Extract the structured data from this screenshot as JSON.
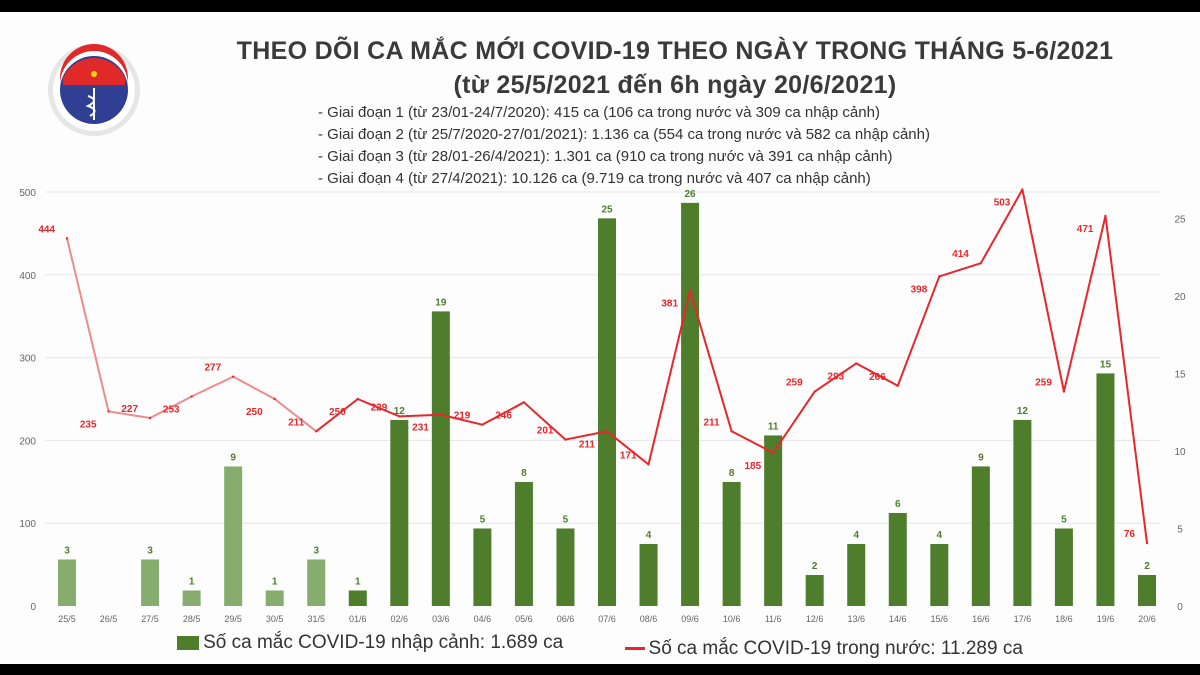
{
  "header": {
    "title_line1": "THEO DÕI CA MẮC MỚI COVID-19 THEO NGÀY TRONG THÁNG 5-6/2021",
    "title_line2": "(từ 25/5/2021 đến 6h ngày 20/6/2021)",
    "logo_text": "BỘ Y TẾ",
    "phases": [
      "- Giai đoạn 1 (từ 23/01-24/7/2020): 415 ca (106 ca trong nước và 309 ca nhập cảnh)",
      "- Giai đoạn 2 (từ 25/7/2020-27/01/2021): 1.136 ca (554 ca trong nước và 582 ca nhập cảnh)",
      "- Giai đoạn 3 (từ 28/01-26/4/2021): 1.301 ca (910 ca trong nước và 391 ca nhập cảnh)",
      "- Giai đoạn 4 (từ 27/4/2021): 10.126 ca (9.719 ca trong nước và 407 ca nhập cảnh)"
    ]
  },
  "legend": {
    "bar_label": "Số ca mắc COVID-19 nhập cảnh: 1.689 ca",
    "line_label": "Số ca mắc COVID-19 trong nước: 11.289 ca"
  },
  "colors": {
    "bar": "#4e7d2c",
    "bar_faded": "#86ad6d",
    "line": "#e8262b",
    "line_faded": "#f08a8c",
    "bar_label": "#4e7d2c",
    "line_label": "#e8262b"
  },
  "chart_data": {
    "type": "bar+line",
    "categories": [
      "25/5",
      "26/5",
      "27/5",
      "28/5",
      "29/5",
      "30/5",
      "31/5",
      "01/6",
      "02/6",
      "03/6",
      "04/6",
      "05/6",
      "06/6",
      "07/6",
      "08/6",
      "09/6",
      "10/6",
      "11/6",
      "12/6",
      "13/6",
      "14/6",
      "15/6",
      "16/6",
      "17/6",
      "18/6",
      "19/6",
      "20/6"
    ],
    "series": [
      {
        "name": "Số ca mắc COVID-19 nhập cảnh: 1.689 ca",
        "type": "bar",
        "axis": "right",
        "values": [
          3,
          0,
          3,
          1,
          9,
          1,
          3,
          1,
          12,
          19,
          5,
          8,
          5,
          25,
          4,
          26,
          8,
          11,
          2,
          4,
          6,
          4,
          9,
          12,
          5,
          15,
          2
        ]
      },
      {
        "name": "Số ca mắc COVID-19 trong nước: 11.289 ca",
        "type": "line",
        "axis": "left",
        "values": [
          444,
          235,
          227,
          253,
          277,
          250,
          211,
          250,
          229,
          231,
          219,
          246,
          201,
          211,
          171,
          381,
          211,
          185,
          259,
          293,
          266,
          398,
          414,
          503,
          259,
          471,
          76
        ]
      }
    ],
    "left_axis": {
      "ylim": [
        0,
        500
      ],
      "ticks": [
        0,
        100,
        200,
        300,
        400,
        500
      ]
    },
    "right_axis": {
      "ylim": [
        0,
        26.7
      ],
      "ticks": [
        0,
        5,
        10,
        15,
        20,
        25
      ]
    },
    "grid": true,
    "legend_position": "bottom"
  }
}
